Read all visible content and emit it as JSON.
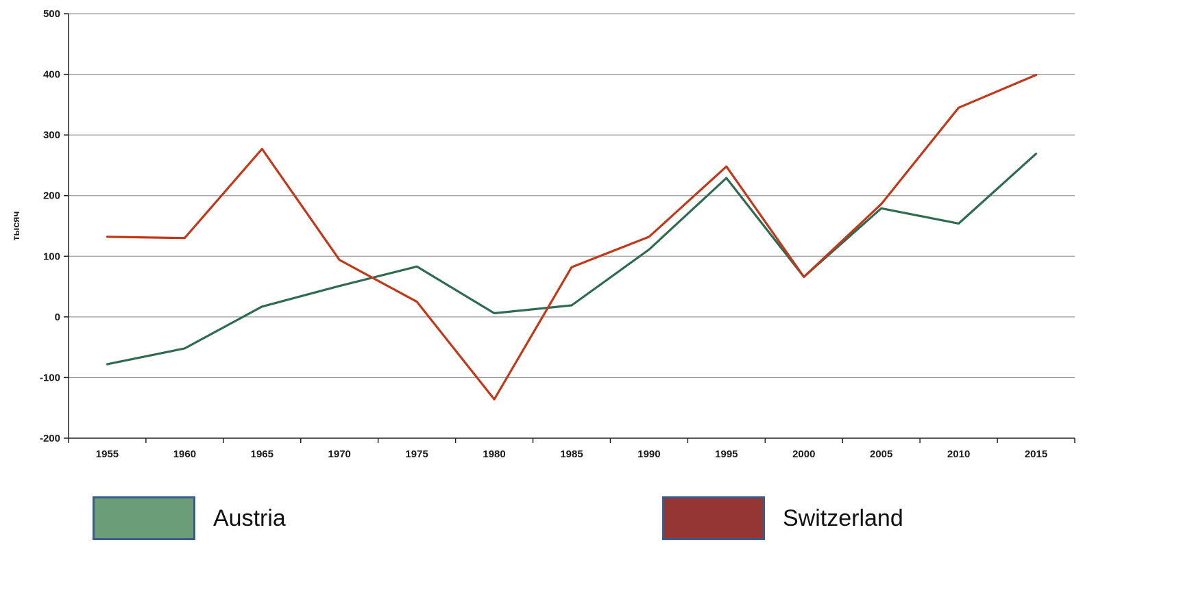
{
  "chart_data": {
    "type": "line",
    "title": "",
    "xlabel": "",
    "ylabel": "тысяч",
    "ylim": [
      -200,
      500
    ],
    "yticks": [
      -200,
      -100,
      0,
      100,
      200,
      300,
      400,
      500
    ],
    "categories": [
      "1955",
      "1960",
      "1965",
      "1970",
      "1975",
      "1980",
      "1985",
      "1990",
      "1995",
      "2000",
      "2005",
      "2010",
      "2015"
    ],
    "grid": true,
    "legend_position": "bottom",
    "series": [
      {
        "name": "Austria",
        "color": "#2e6b50",
        "swatch": "#6b9e78",
        "values": [
          -78,
          -52,
          17,
          51,
          83,
          6,
          19,
          111,
          229,
          66,
          179,
          154,
          269
        ]
      },
      {
        "name": "Switzerland",
        "color": "#c0391b",
        "swatch": "#963634",
        "values": [
          132,
          130,
          277,
          94,
          25,
          -136,
          82,
          132,
          248,
          66,
          186,
          345,
          399
        ]
      }
    ]
  }
}
